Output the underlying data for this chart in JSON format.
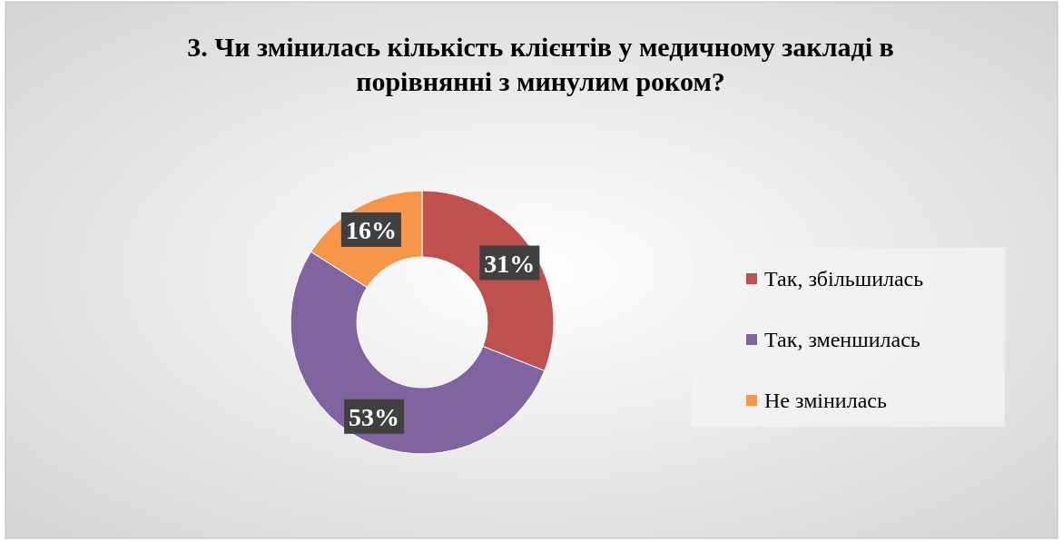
{
  "chart_data": {
    "type": "donut",
    "title": "3. Чи змінилась кількість клієнтів у медичному закладі в порівнянні з минулим роком?",
    "categories": [
      "Так, збільшилась",
      "Так, зменшилась",
      "Не змінилась"
    ],
    "values": [
      31,
      53,
      16
    ],
    "colors": [
      "#c0504d",
      "#8064a2",
      "#f79646"
    ],
    "value_labels": [
      "31%",
      "53%",
      "16%"
    ],
    "legend": "right"
  }
}
